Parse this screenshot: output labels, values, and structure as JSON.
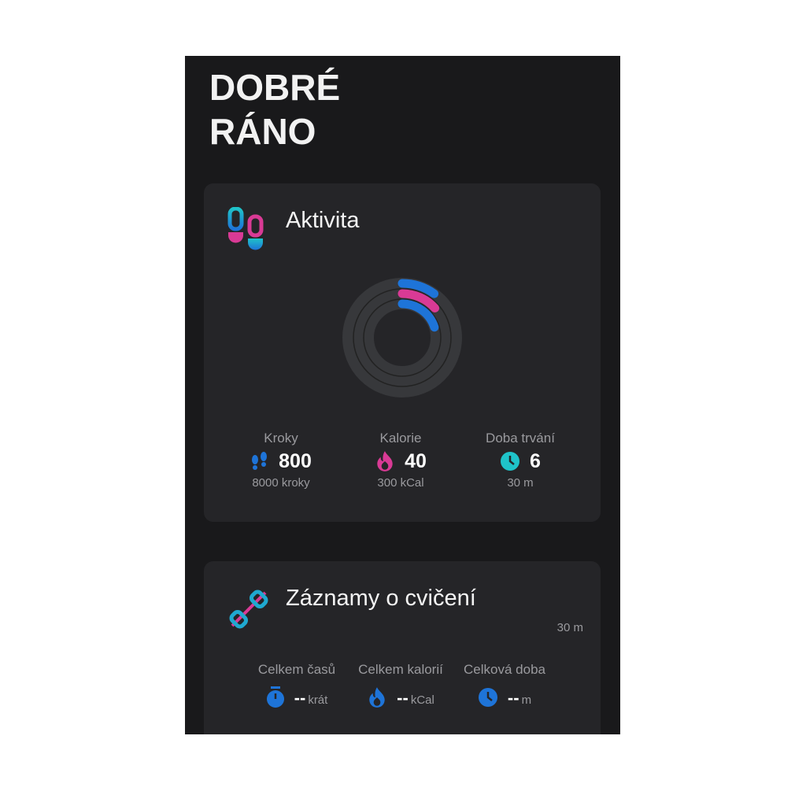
{
  "greeting": "DOBRÉ RÁNO",
  "activity": {
    "title": "Aktivita",
    "icon": "footsteps-icon",
    "rings": {
      "steps_progress": 0.1,
      "calories_progress": 0.133,
      "duration_progress": 0.2
    },
    "stats": [
      {
        "label": "Kroky",
        "value": "800",
        "goal": "8000 kroky",
        "icon": "footsteps-icon",
        "color": "#1e74d8"
      },
      {
        "label": "Kalorie",
        "value": "40",
        "goal": "300 kCal",
        "icon": "flame-icon",
        "color": "#d93a95"
      },
      {
        "label": "Doba trvání",
        "value": "6",
        "goal": "30 m",
        "icon": "clock-icon",
        "color": "#1fc3c9"
      }
    ]
  },
  "exercise": {
    "title": "Záznamy o cvičení",
    "icon": "dumbbell-icon",
    "duration": "30 m",
    "stats": [
      {
        "label": "Celkem časů",
        "value": "--",
        "unit": "krát",
        "icon": "stopwatch-icon"
      },
      {
        "label": "Celkem kalorií",
        "value": "--",
        "unit": "kCal",
        "icon": "flame-icon"
      },
      {
        "label": "Celková doba",
        "value": "--",
        "unit": "m",
        "icon": "clock-icon"
      }
    ]
  },
  "colors": {
    "blue": "#1e74d8",
    "pink": "#d93a95",
    "teal": "#1fc3c9",
    "card": "#252528",
    "background": "#19191b"
  }
}
